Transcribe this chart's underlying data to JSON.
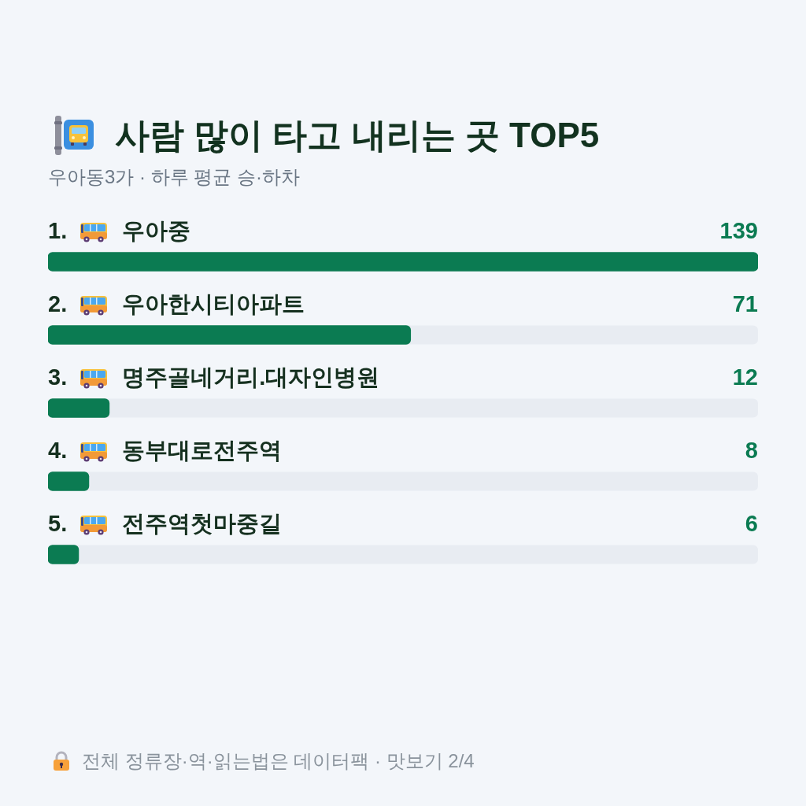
{
  "chart_data": {
    "type": "bar",
    "orientation": "horizontal",
    "title": "사람 많이 타고 내리는 곳 TOP5",
    "subtitle": "우아동3가 · 하루 평균 승·하차",
    "categories": [
      "1. 우아중",
      "2. 우아한시티아파트",
      "3. 명주골네거리.대자인병원",
      "4. 동부대로전주역",
      "5. 전주역첫마중길"
    ],
    "values": [
      139,
      71,
      12,
      8,
      6
    ],
    "color": "#0b7b52",
    "data_labels": true,
    "xlim": [
      0,
      139
    ],
    "tick_labels": false,
    "annotations": [
      "전체 정류장·역·읽는법은 데이터팩 · 맛보기 2/4"
    ]
  }
}
